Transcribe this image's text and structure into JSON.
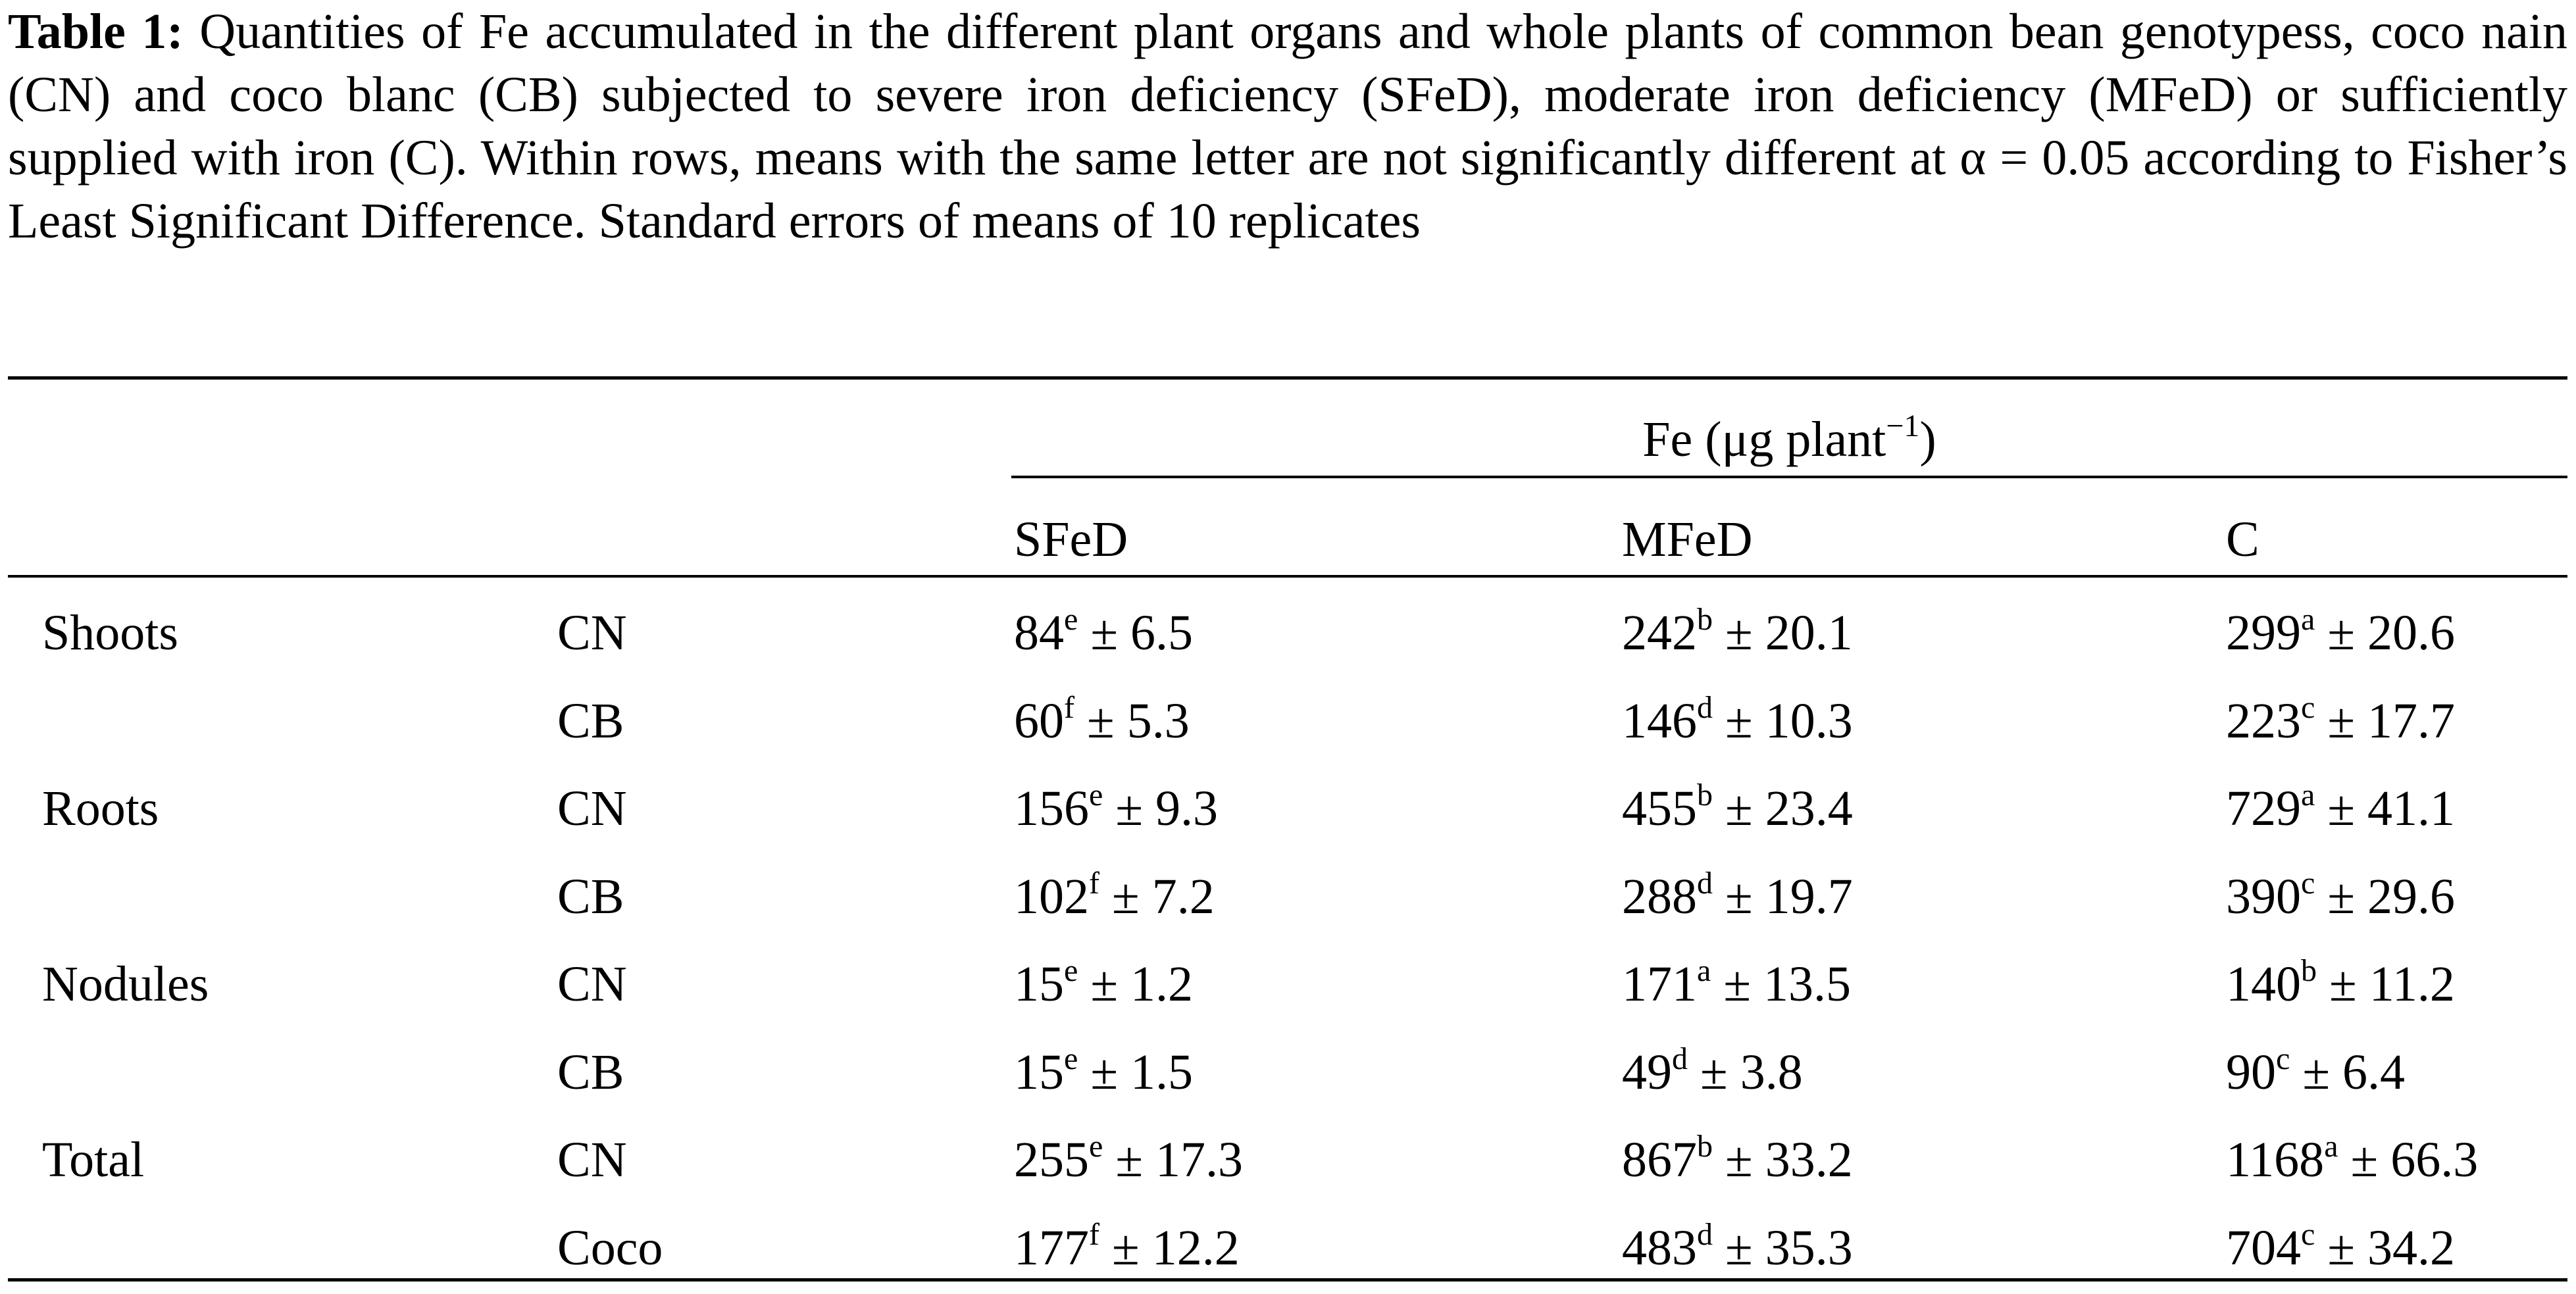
{
  "caption": {
    "label": "Table 1:",
    "text": "Quantities of Fe accumulated in the different plant organs and whole plants of common bean genotypess, coco nain (CN) and coco blanc (CB) subjected to severe iron deficiency (SFeD), moderate iron deficiency (MFeD) or sufficiently supplied with iron (C). Within rows, means with the same letter are not significantly different at α = 0.05 according to Fisher’s Least Significant Difference. Standard errors of means of 10 replicates"
  },
  "table": {
    "group_header": {
      "prefix": "Fe (μg plant",
      "superscript": "−1",
      "suffix": ")"
    },
    "columns": [
      "SFeD",
      "MFeD",
      "C"
    ],
    "rows": [
      {
        "organ": "Shoots",
        "genotype": "CN",
        "cells": [
          {
            "mean": "84",
            "letter": "e",
            "se": " ± 6.5"
          },
          {
            "mean": "242",
            "letter": "b",
            "se": " ± 20.1"
          },
          {
            "mean": "299",
            "letter": "a",
            "se": " ± 20.6"
          }
        ]
      },
      {
        "organ": "",
        "genotype": "CB",
        "cells": [
          {
            "mean": "60",
            "letter": "f",
            "se": " ± 5.3"
          },
          {
            "mean": "146",
            "letter": "d",
            "se": " ± 10.3"
          },
          {
            "mean": "223",
            "letter": "c",
            "se": " ± 17.7"
          }
        ]
      },
      {
        "organ": "Roots",
        "genotype": "CN",
        "cells": [
          {
            "mean": "156",
            "letter": "e",
            "se": " ± 9.3"
          },
          {
            "mean": "455",
            "letter": "b",
            "se": " ± 23.4"
          },
          {
            "mean": "729",
            "letter": "a",
            "se": " ± 41.1"
          }
        ]
      },
      {
        "organ": "",
        "genotype": "CB",
        "cells": [
          {
            "mean": "102",
            "letter": "f",
            "se": " ± 7.2"
          },
          {
            "mean": "288",
            "letter": "d",
            "se": " ± 19.7"
          },
          {
            "mean": "390",
            "letter": "c",
            "se": " ± 29.6"
          }
        ]
      },
      {
        "organ": "Nodules",
        "genotype": "CN",
        "cells": [
          {
            "mean": "15",
            "letter": "e",
            "se": " ± 1.2"
          },
          {
            "mean": "171",
            "letter": "a",
            "se": " ± 13.5"
          },
          {
            "mean": "140",
            "letter": "b",
            "se": " ± 11.2"
          }
        ]
      },
      {
        "organ": "",
        "genotype": "CB",
        "cells": [
          {
            "mean": "15",
            "letter": "e",
            "se": " ± 1.5"
          },
          {
            "mean": "49",
            "letter": "d",
            "se": " ± 3.8"
          },
          {
            "mean": "90",
            "letter": "c",
            "se": " ± 6.4"
          }
        ]
      },
      {
        "organ": "Total",
        "genotype": "CN",
        "cells": [
          {
            "mean": "255",
            "letter": "e",
            "se": " ± 17.3"
          },
          {
            "mean": "867",
            "letter": "b",
            "se": " ± 33.2"
          },
          {
            "mean": "1168",
            "letter": "a",
            "se": " ± 66.3"
          }
        ]
      },
      {
        "organ": "",
        "genotype": "Coco",
        "cells": [
          {
            "mean": "177",
            "letter": "f",
            "se": " ± 12.2"
          },
          {
            "mean": "483",
            "letter": "d",
            "se": " ± 35.3"
          },
          {
            "mean": "704",
            "letter": "c",
            "se": " ± 34.2"
          }
        ]
      }
    ]
  }
}
